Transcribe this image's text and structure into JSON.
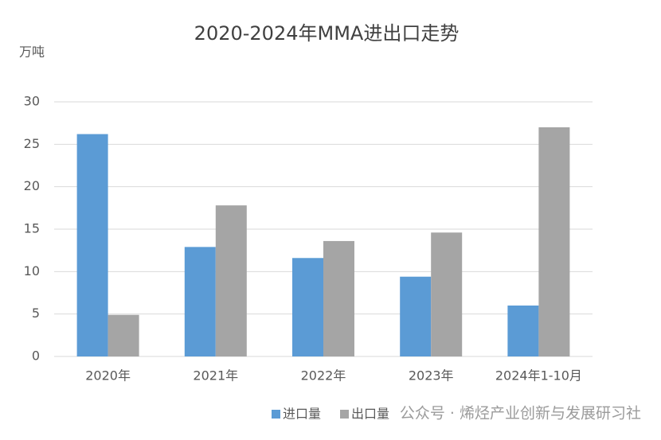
{
  "chart_data": {
    "type": "bar",
    "title": "2020-2024年MMA进出口走势",
    "y_label": "万吨",
    "categories": [
      "2020年",
      "2021年",
      "2022年",
      "2023年",
      "2024年1-10月"
    ],
    "series": [
      {
        "name": "进口量",
        "color": "#5b9bd5",
        "values": [
          26.2,
          12.9,
          11.6,
          9.4,
          6.0
        ]
      },
      {
        "name": "出口量",
        "color": "#a5a5a5",
        "values": [
          4.9,
          17.8,
          13.6,
          14.6,
          27.0
        ]
      }
    ],
    "ylim": [
      0,
      30
    ],
    "yticks": [
      0,
      5,
      10,
      15,
      20,
      25,
      30
    ],
    "grid": true,
    "legend": "bottom",
    "watermark": "公众号 · 烯烃产业创新与发展研习社"
  }
}
